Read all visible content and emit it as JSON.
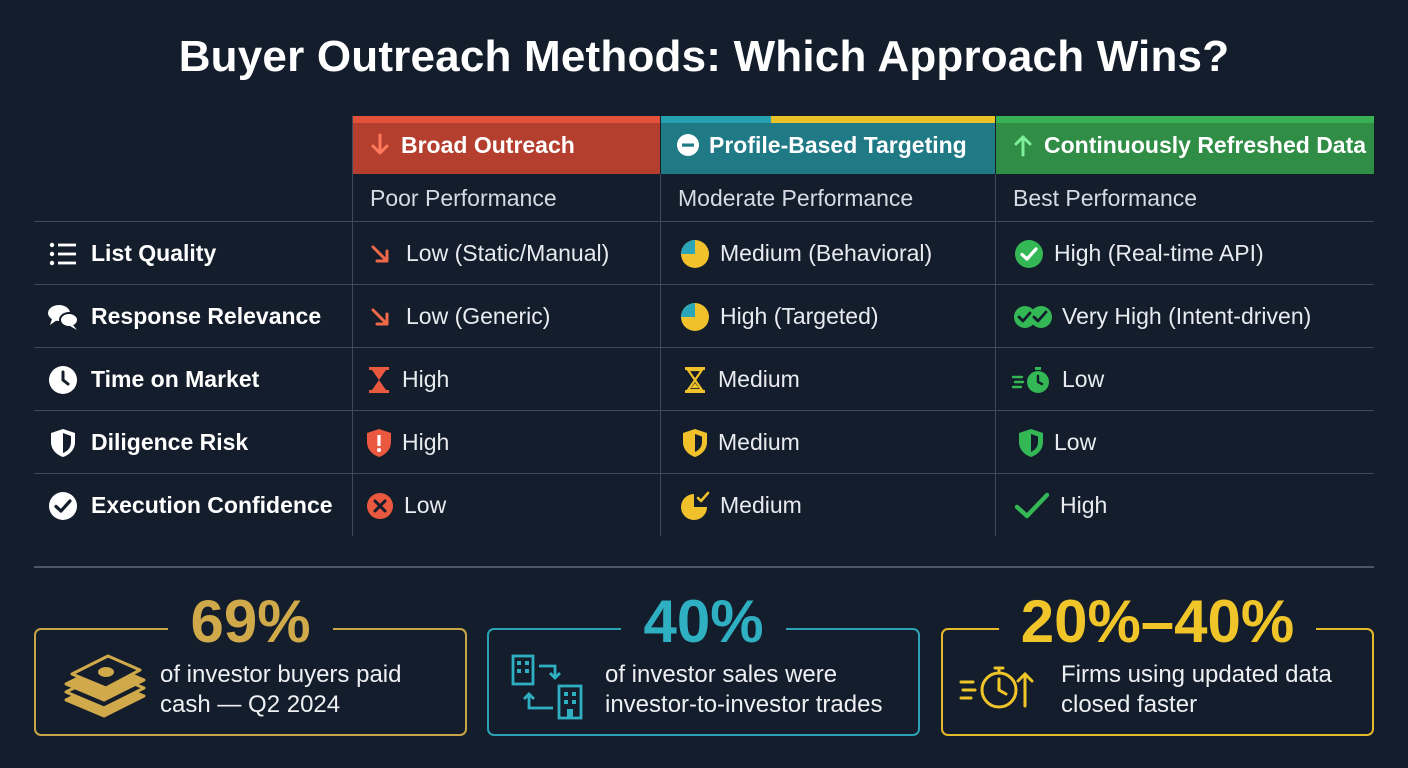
{
  "title": "Buyer Outreach Methods: Which Approach Wins?",
  "columns": [
    {
      "label": "Broad Outreach",
      "performance": "Poor Performance",
      "icon": "arrow-down-icon",
      "color": "#e4513a"
    },
    {
      "label": "Profile-Based Targeting",
      "performance": "Moderate Performance",
      "icon": "minus-circle-icon",
      "color": "#27a0b0"
    },
    {
      "label": "Continuously Refreshed Data",
      "performance": "Best Performance",
      "icon": "arrow-up-icon",
      "color": "#35b052"
    }
  ],
  "rows": [
    {
      "label": "List Quality",
      "icon": "list-icon",
      "cells": [
        {
          "text": "Low (Static/Manual)",
          "icon": "trend-down-icon"
        },
        {
          "text": "Medium (Behavioral)",
          "icon": "pie-half-icon"
        },
        {
          "text": "High (Real-time API)",
          "icon": "check-circle-icon"
        }
      ]
    },
    {
      "label": "Response Relevance",
      "icon": "chat-bubbles-icon",
      "cells": [
        {
          "text": "Low (Generic)",
          "icon": "trend-down-icon"
        },
        {
          "text": "High (Targeted)",
          "icon": "pie-three-quarter-icon"
        },
        {
          "text": "Very High (Intent-driven)",
          "icon": "double-check-icon"
        }
      ]
    },
    {
      "label": "Time on Market",
      "icon": "clock-icon",
      "cells": [
        {
          "text": "High",
          "icon": "hourglass-icon"
        },
        {
          "text": "Medium",
          "icon": "hourglass-icon"
        },
        {
          "text": "Low",
          "icon": "stopwatch-icon"
        }
      ]
    },
    {
      "label": "Diligence Risk",
      "icon": "shield-icon",
      "cells": [
        {
          "text": "High",
          "icon": "shield-alert-icon"
        },
        {
          "text": "Medium",
          "icon": "shield-half-icon"
        },
        {
          "text": "Low",
          "icon": "shield-half-icon"
        }
      ]
    },
    {
      "label": "Execution Confidence",
      "icon": "check-circle-icon",
      "cells": [
        {
          "text": "Low",
          "icon": "x-circle-icon"
        },
        {
          "text": "Medium",
          "icon": "pie-check-icon"
        },
        {
          "text": "High",
          "icon": "checkmark-icon"
        }
      ]
    }
  ],
  "stats": [
    {
      "value": "69%",
      "text": "of investor buyers paid cash — Q2 2024",
      "icon": "cash-stack-icon",
      "color": "#cfa94a"
    },
    {
      "value": "40%",
      "text": "of investor sales were investor-to-investor trades",
      "icon": "building-exchange-icon",
      "color": "#2fb0c2"
    },
    {
      "value": "20%–40%",
      "text": "Firms using updated data closed faster",
      "icon": "fast-stopwatch-icon",
      "color": "#f0c52a"
    }
  ]
}
